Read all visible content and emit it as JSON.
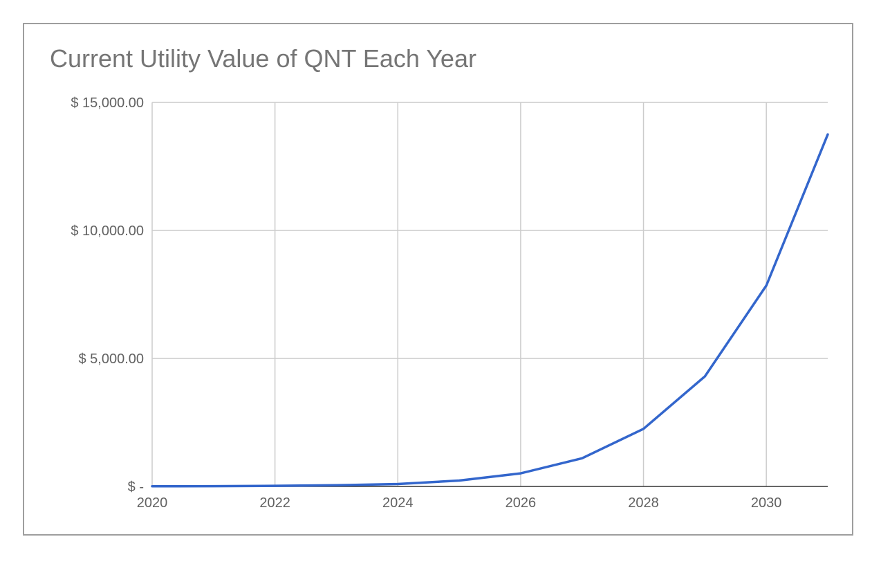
{
  "chart_data": {
    "type": "line",
    "title": "Current Utility Value of QNT Each Year",
    "xlabel": "",
    "ylabel": "",
    "x": [
      2020,
      2021,
      2022,
      2023,
      2024,
      2025,
      2026,
      2027,
      2028,
      2029,
      2030,
      2031
    ],
    "series": [
      {
        "values": [
          5,
          12,
          25,
          45,
          95,
          230,
          510,
          1100,
          2250,
          4300,
          7850,
          13750
        ],
        "color": "#3366cc"
      }
    ],
    "xlim": [
      2020,
      2031
    ],
    "ylim": [
      0,
      15000
    ],
    "x_ticks": [
      2020,
      2022,
      2024,
      2026,
      2028,
      2030
    ],
    "x_tick_labels": [
      "2020",
      "2022",
      "2024",
      "2026",
      "2028",
      "2030"
    ],
    "y_ticks": [
      0,
      5000,
      10000,
      15000
    ],
    "y_tick_labels": [
      "$ -",
      "$ 5,000.00",
      "$ 10,000.00",
      "$ 15,000.00"
    ],
    "grid": true,
    "legend": "none"
  }
}
